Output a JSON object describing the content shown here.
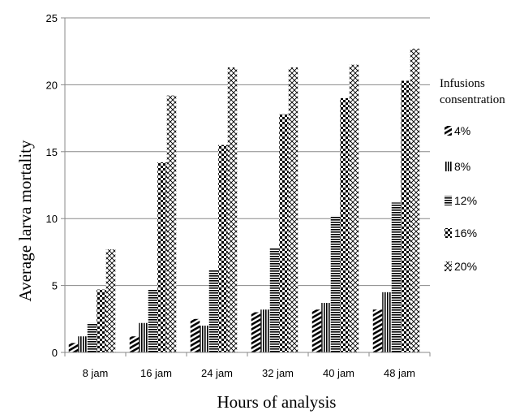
{
  "chart_data": {
    "type": "bar",
    "xlabel": "Hours of analysis",
    "ylabel": "Average larva mortality",
    "ylim": [
      0,
      25
    ],
    "yticks": [
      0,
      5,
      10,
      15,
      20,
      25
    ],
    "categories": [
      "8 jam",
      "16 jam",
      "24 jam",
      "32 jam",
      "40 jam",
      "48 jam"
    ],
    "legend_title": [
      "Infusions",
      "consentration"
    ],
    "legend_position": "right",
    "grid": true,
    "series": [
      {
        "name": "4%",
        "pattern": "diagonal-hatch",
        "values": [
          0.7,
          1.2,
          2.5,
          3.0,
          3.2,
          3.2
        ]
      },
      {
        "name": "8%",
        "pattern": "vertical-stripes",
        "values": [
          1.2,
          2.2,
          2.0,
          3.2,
          3.7,
          4.5
        ]
      },
      {
        "name": "12%",
        "pattern": "horizontal-stripes",
        "values": [
          2.2,
          4.7,
          6.2,
          7.8,
          10.2,
          11.2
        ]
      },
      {
        "name": "16%",
        "pattern": "checkerboard",
        "values": [
          4.7,
          14.2,
          15.5,
          17.8,
          19.0,
          20.3
        ]
      },
      {
        "name": "20%",
        "pattern": "diamond-lattice",
        "values": [
          7.7,
          19.2,
          21.3,
          21.3,
          21.5,
          22.7
        ]
      }
    ],
    "colors": {
      "ink": "#000000",
      "grid": "#888888",
      "axis": "#888888",
      "background": "#ffffff"
    }
  }
}
